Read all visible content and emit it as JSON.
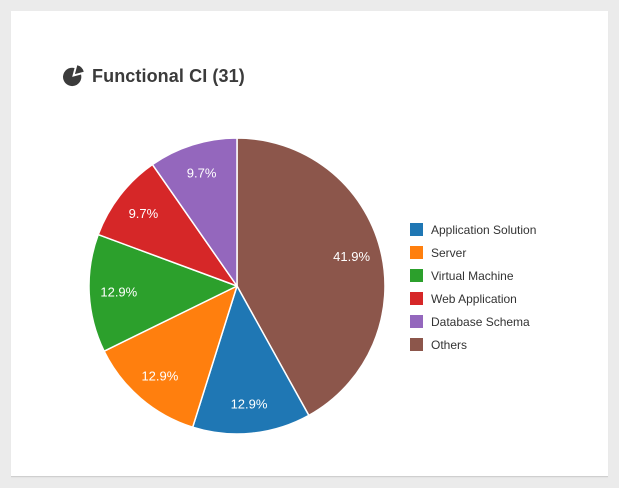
{
  "colors": {
    "page_background": "#ebebeb",
    "card_background": "#ffffff",
    "title_text": "#3b3b3b",
    "slice_label_text": "#ffffff",
    "slice_border": "#ffffff",
    "legend_text": "#333333"
  },
  "header": {
    "icon": "pie-chart-icon"
  },
  "chart_data": {
    "type": "pie",
    "title": "Functional CI (31)",
    "total": 31,
    "legend_position": "right",
    "start_angle_deg": 0,
    "direction": "clockwise",
    "sort": "value-descending",
    "label_radius_ratio": 0.8,
    "series": [
      {
        "name": "Application Solution",
        "value": 4,
        "pct_label": "12.9%",
        "color": "#1f77b4"
      },
      {
        "name": "Server",
        "value": 4,
        "pct_label": "12.9%",
        "color": "#ff7f0e"
      },
      {
        "name": "Virtual Machine",
        "value": 4,
        "pct_label": "12.9%",
        "color": "#2ca02c"
      },
      {
        "name": "Web Application",
        "value": 3,
        "pct_label": "9.7%",
        "color": "#d62728"
      },
      {
        "name": "Database Schema",
        "value": 3,
        "pct_label": "9.7%",
        "color": "#9467bd"
      },
      {
        "name": "Others",
        "value": 13,
        "pct_label": "41.9%",
        "color": "#8c564b"
      }
    ]
  }
}
